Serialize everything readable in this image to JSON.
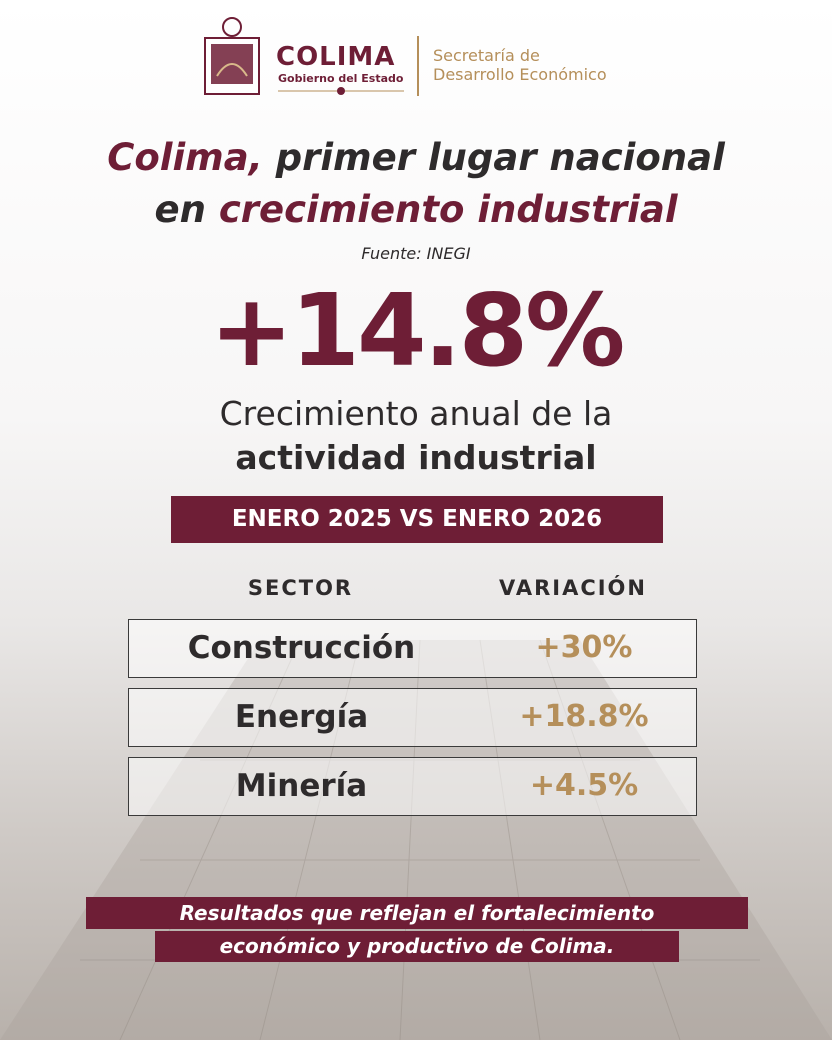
{
  "header": {
    "logo_title": "COLIMA",
    "logo_subtitle": "Gobierno del Estado",
    "department": [
      "Secretaría de",
      "Desarrollo Económico"
    ]
  },
  "headline": {
    "line1": [
      "Colima,",
      " primer lugar nacional"
    ],
    "line2": [
      "en ",
      "crecimiento industrial"
    ]
  },
  "source": "Fuente: INEGI",
  "highlight": {
    "value": "+14.8%",
    "caption": [
      "Crecimiento anual de la",
      "actividad industrial"
    ]
  },
  "period": "ENERO 2025 VS ENERO 2026",
  "table": {
    "header": [
      "SECTOR",
      "VARIACIÓN"
    ],
    "rows": [
      [
        "Construcción",
        "+30%"
      ],
      [
        "Energía",
        "+18.8%"
      ],
      [
        "Minería",
        "+4.5%"
      ]
    ]
  },
  "footer": [
    "Resultados que reflejan el fortalecimiento",
    "económico y productivo de Colima."
  ]
}
